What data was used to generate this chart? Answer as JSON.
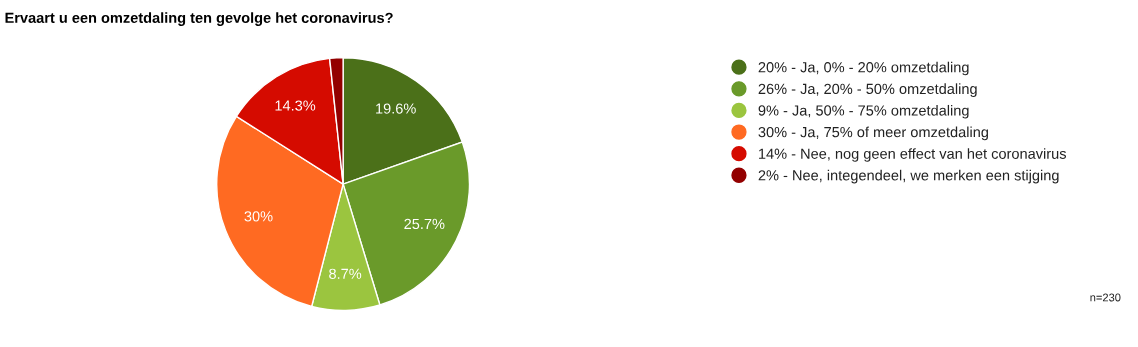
{
  "chart_data": {
    "type": "pie",
    "title": "Ervaart u een omzetdaling ten gevolge het coronavirus?",
    "categories": [
      "20% - Ja, 0% - 20% omzetdaling",
      "26% - Ja, 20% - 50% omzetdaling",
      "9% - Ja, 50% - 75% omzetdaling",
      "30% - Ja, 75% of meer omzetdaling",
      "14% - Nee, nog geen effect van het coronavirus",
      "2% - Nee, integendeel, we merken een stijging"
    ],
    "values": [
      19.6,
      25.7,
      8.7,
      30,
      14.3,
      1.7
    ],
    "colors": [
      "#4b7019",
      "#6a9a2a",
      "#9bc53f",
      "#ff6a22",
      "#d50b00",
      "#930000"
    ],
    "value_labels": [
      "19.6%",
      "25.7%",
      "8.7%",
      "30%",
      "14.3%",
      null
    ],
    "legend": "right",
    "annotations": [
      "n=230"
    ]
  }
}
